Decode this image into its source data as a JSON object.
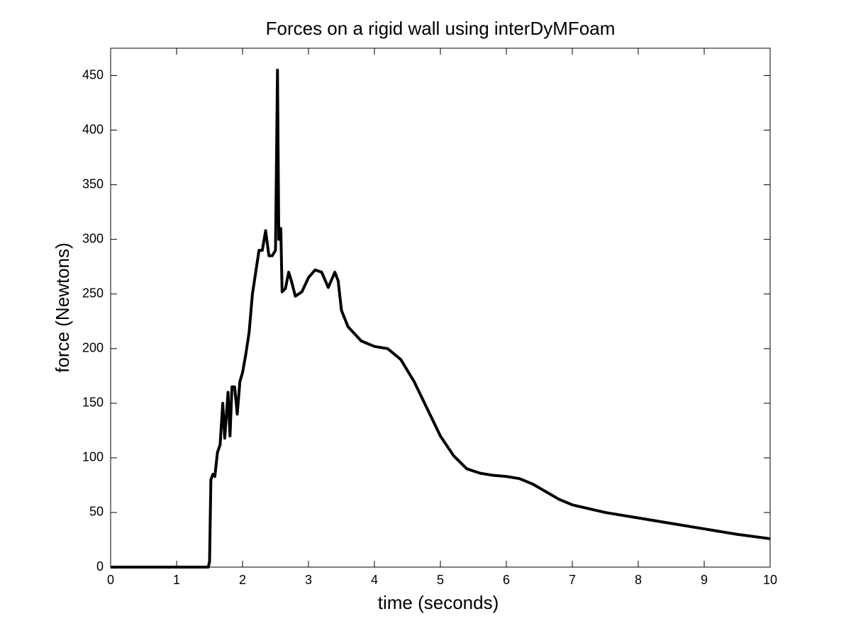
{
  "chart_data": {
    "type": "line",
    "title": "Forces on a rigid wall using interDyMFoam",
    "x_label": "time (seconds)",
    "y_label": "force (Newtons)",
    "x": [
      0,
      1.48,
      1.5,
      1.52,
      1.55,
      1.58,
      1.62,
      1.66,
      1.7,
      1.73,
      1.78,
      1.81,
      1.84,
      1.88,
      1.92,
      1.96,
      2.0,
      2.05,
      2.1,
      2.15,
      2.2,
      2.25,
      2.3,
      2.35,
      2.4,
      2.45,
      2.5,
      2.53,
      2.55,
      2.58,
      2.6,
      2.65,
      2.7,
      2.75,
      2.8,
      2.9,
      3.0,
      3.1,
      3.2,
      3.3,
      3.4,
      3.45,
      3.5,
      3.6,
      3.8,
      4.0,
      4.2,
      4.4,
      4.6,
      4.8,
      5.0,
      5.2,
      5.4,
      5.6,
      5.8,
      6.0,
      6.2,
      6.4,
      6.6,
      6.8,
      7.0,
      7.5,
      8.0,
      8.5,
      9.0,
      9.5,
      10
    ],
    "series": [
      {
        "color": "#000000",
        "values": [
          0,
          0,
          5,
          80,
          85,
          83,
          105,
          112,
          150,
          118,
          160,
          120,
          165,
          165,
          140,
          170,
          178,
          195,
          215,
          250,
          270,
          290,
          290,
          308,
          285,
          285,
          290,
          455,
          300,
          310,
          252,
          255,
          270,
          260,
          248,
          252,
          265,
          272,
          270,
          256,
          270,
          262,
          235,
          220,
          207,
          202,
          200,
          190,
          170,
          145,
          120,
          102,
          90,
          86,
          84,
          83,
          81,
          76,
          69,
          62,
          57,
          50,
          45,
          40,
          35,
          30,
          26
        ]
      }
    ],
    "xlim": [
      0,
      10
    ],
    "xticks": [
      0,
      1,
      2,
      3,
      4,
      5,
      6,
      7,
      8,
      9,
      10
    ],
    "ylim": [
      0,
      475
    ],
    "yticks": [
      0,
      50,
      100,
      150,
      200,
      250,
      300,
      350,
      400,
      450
    ],
    "grid": false
  }
}
